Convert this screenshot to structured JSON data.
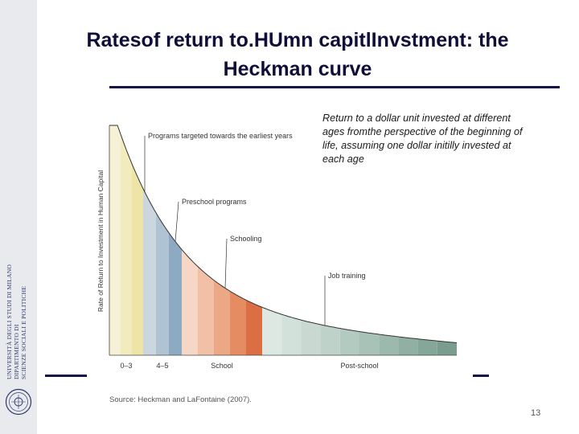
{
  "slide": {
    "title_line1": "Ratesof return to.HUmn capitlInvstment: the",
    "title_line2": "Heckman curve",
    "note": "Return to a dollar unit invested at different ages fromthe perspective of the beginning of life, assuming one dollar initilly invested at each age",
    "source": "Source: Heckman and LaFontaine (2007).",
    "page_number": "13",
    "sidebar_lines": [
      "UNIVERSITÀ DEGLI STUDI DI MILANO",
      "DIPARTIMENTO DI",
      "SCIENZE SOCIALI E POLITICHE"
    ]
  },
  "chart_data": {
    "type": "area",
    "title": "",
    "ylabel": "Rate of Return to Investment in Human Capital",
    "xlabel": "",
    "x_groups": [
      {
        "label": "0–3",
        "bands": 3
      },
      {
        "label": "4–5",
        "bands": 3
      },
      {
        "label": "School",
        "bands": 5
      },
      {
        "label": "Post-school",
        "bands": 10
      }
    ],
    "curve": "decreasing return with age",
    "annotations": [
      {
        "text": "Programs targeted towards the earliest years"
      },
      {
        "text": "Preschool programs"
      },
      {
        "text": "Schooling"
      },
      {
        "text": "Job training"
      }
    ],
    "colors": {
      "early": [
        "#f6f1d6",
        "#f2ebbe",
        "#ede4a6"
      ],
      "preschool": [
        "#cbd6df",
        "#b0c3d3",
        "#8ea9c2"
      ],
      "school": [
        "#f6d7c6",
        "#f1c0a6",
        "#eca784",
        "#e58c62",
        "#db6e42"
      ],
      "post_school": [
        "#dde8e3",
        "#d3e1db",
        "#c9d9d2",
        "#bed2ca",
        "#b3cac1",
        "#a8c2b8",
        "#9cb9ae",
        "#91b0a4",
        "#85a799",
        "#7a9d8e"
      ]
    }
  }
}
